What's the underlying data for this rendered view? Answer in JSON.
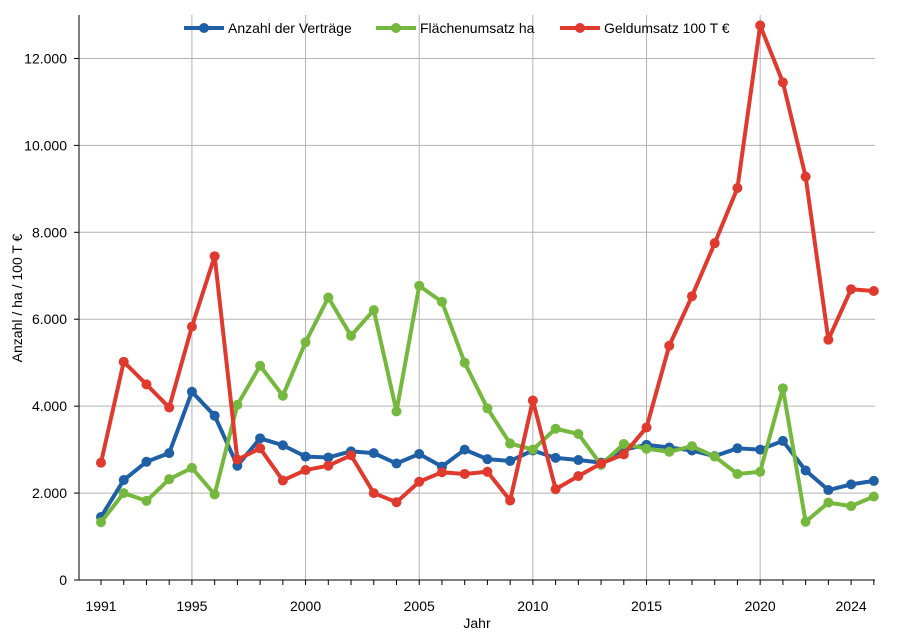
{
  "chart_data": {
    "type": "line",
    "xlabel": "Jahr",
    "ylabel": "Anzahl / ha / 100 T €",
    "xlim": [
      1991,
      2025
    ],
    "ylim": [
      0,
      13000
    ],
    "y_ticks": [
      0,
      2000,
      4000,
      6000,
      8000,
      10000,
      12000
    ],
    "y_tick_labels": [
      "0",
      "2.000",
      "4.000",
      "6.000",
      "8.000",
      "10.000",
      "12.000"
    ],
    "x_tick_labels": [
      "1991",
      "1995",
      "2000",
      "2005",
      "2010",
      "2015",
      "2020",
      "2024"
    ],
    "x_tick_values": [
      1991,
      1995,
      2000,
      2005,
      2010,
      2015,
      2020,
      2024
    ],
    "x_gridlines": [
      1995,
      2000,
      2005,
      2010,
      2015,
      2020
    ],
    "grid": true,
    "legend_position": "top",
    "x": [
      1991,
      1992,
      1993,
      1994,
      1995,
      1996,
      1997,
      1998,
      1999,
      2000,
      2001,
      2002,
      2003,
      2004,
      2005,
      2006,
      2007,
      2008,
      2009,
      2010,
      2011,
      2012,
      2013,
      2014,
      2015,
      2016,
      2017,
      2018,
      2019,
      2020,
      2021,
      2022,
      2023,
      2024,
      2025
    ],
    "series": [
      {
        "name": "Anzahl der Verträge",
        "color": "#1f5fa6",
        "values": [
          1450,
          2300,
          2720,
          2920,
          4330,
          3780,
          2630,
          3260,
          3100,
          2840,
          2820,
          2960,
          2920,
          2680,
          2900,
          2610,
          3000,
          2780,
          2740,
          2980,
          2810,
          2760,
          2700,
          3000,
          3110,
          3050,
          2980,
          2850,
          3030,
          3000,
          3200,
          2520,
          2070,
          2200,
          2280
        ]
      },
      {
        "name": "Flächenumsatz ha",
        "color": "#74b83e",
        "values": [
          1330,
          2000,
          1820,
          2320,
          2580,
          1970,
          4030,
          4930,
          4240,
          5470,
          6500,
          5620,
          6210,
          3880,
          6770,
          6400,
          5000,
          3950,
          3140,
          3000,
          3480,
          3360,
          2650,
          3130,
          3020,
          2950,
          3080,
          2840,
          2440,
          2490,
          4410,
          1340,
          1780,
          1700,
          1920
        ]
      },
      {
        "name": "Geldumsatz 100 T €",
        "color": "#e03a2f",
        "values": [
          2700,
          5020,
          4500,
          3970,
          5830,
          7450,
          2770,
          3030,
          2290,
          2530,
          2630,
          2870,
          2000,
          1790,
          2260,
          2480,
          2440,
          2490,
          1830,
          4130,
          2090,
          2390,
          2680,
          2890,
          3510,
          5390,
          6530,
          7750,
          9020,
          12760,
          11450,
          9280,
          5530,
          6690,
          6650
        ]
      }
    ]
  }
}
